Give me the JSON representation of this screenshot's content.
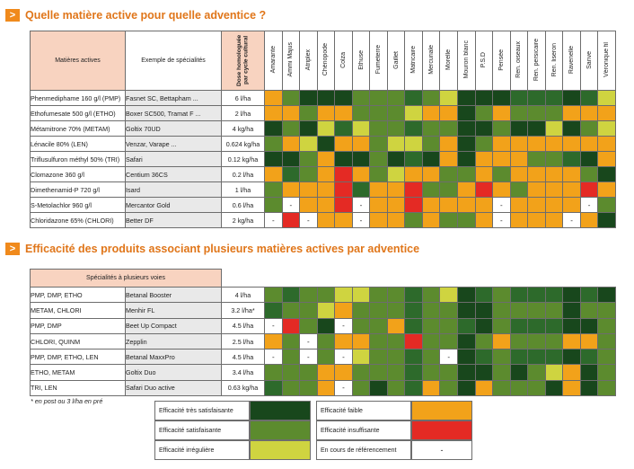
{
  "section1": {
    "marker": ">",
    "title": "Quelle matière active pour quelle adventice ?"
  },
  "section2": {
    "marker": ">",
    "title": "Efficacité des produits associant plusieurs matières actives par adventice"
  },
  "table1": {
    "head_actives": "Matières actives",
    "head_spec": "Exemple de spécialités",
    "head_dose": "Dose homologuée par cycle cultural",
    "weeds": [
      "Amarante",
      "Ammi Majus",
      "Atriplex",
      "Chénopode",
      "Colza",
      "Ethuse",
      "Fumeterre",
      "Gaillet",
      "Matricaire",
      "Mercuriale",
      "Morelle",
      "Mouron blanc",
      "P.S.D",
      "Pensée",
      "Ren. oiseaux",
      "Ren. persicaire",
      "Ren. liseron",
      "Ravenelle",
      "Sanve",
      "Véronique fil"
    ],
    "rows": [
      {
        "active": "Phenmediphame 160 g/l (PMP)",
        "spec": "Fasnet SC, Bettapham ...",
        "dose": "6 l/ha",
        "cells": [
          "O",
          "L",
          "D",
          "D",
          "D",
          "L",
          "L",
          "L",
          "M",
          "L",
          "Y",
          "D",
          "D",
          "D",
          "M",
          "M",
          "M",
          "D",
          "M",
          "Y"
        ]
      },
      {
        "active": "Ethofumesate 500 g/l (ETHO)",
        "spec": "Boxer SC500, Tramat F ...",
        "dose": "2 l/ha",
        "cells": [
          "O",
          "O",
          "L",
          "O",
          "O",
          "L",
          "L",
          "L",
          "Y",
          "O",
          "O",
          "D",
          "L",
          "O",
          "L",
          "L",
          "L",
          "O",
          "O",
          "O"
        ]
      },
      {
        "active": "Métamitrone 70% (METAM)",
        "spec": "Goltix 70UD",
        "dose": "4 kg/ha",
        "cells": [
          "D",
          "L",
          "D",
          "Y",
          "M",
          "Y",
          "L",
          "L",
          "M",
          "L",
          "L",
          "D",
          "D",
          "L",
          "D",
          "D",
          "Y",
          "D",
          "L",
          "Y"
        ]
      },
      {
        "active": "Lénacile 80% (LEN)",
        "spec": "Venzar, Varape ...",
        "dose": "0.624 kg/ha",
        "cells": [
          "L",
          "O",
          "Y",
          "D",
          "O",
          "O",
          "L",
          "Y",
          "Y",
          "L",
          "O",
          "D",
          "L",
          "O",
          "O",
          "O",
          "O",
          "O",
          "O",
          "O"
        ]
      },
      {
        "active": "Triflusulfuron méthyl 50% (TRI)",
        "spec": "Safari",
        "dose": "0.12 kg/ha",
        "cells": [
          "D",
          "D",
          "L",
          "O",
          "D",
          "D",
          "L",
          "D",
          "M",
          "D",
          "O",
          "D",
          "O",
          "O",
          "O",
          "L",
          "L",
          "M",
          "D",
          "O"
        ]
      },
      {
        "active": "Clomazone 360 g/l",
        "spec": "Centium 36CS",
        "dose": "0.2 l/ha",
        "cells": [
          "O",
          "M",
          "L",
          "O",
          "R",
          "O",
          "L",
          "Y",
          "O",
          "O",
          "L",
          "L",
          "O",
          "L",
          "O",
          "O",
          "O",
          "O",
          "L",
          "D"
        ]
      },
      {
        "active": "Dimethenamid-P 720 g/l",
        "spec": "Isard",
        "dose": "1 l/ha",
        "cells": [
          "L",
          "O",
          "O",
          "O",
          "R",
          "M",
          "O",
          "O",
          "R",
          "L",
          "L",
          "O",
          "R",
          "O",
          "L",
          "O",
          "O",
          "O",
          "R",
          "O"
        ]
      },
      {
        "active": "S-Metolachlor 960 g/l",
        "spec": "Mercantor Gold",
        "dose": "0.6 l/ha",
        "cells": [
          "L",
          "-",
          "O",
          "O",
          "R",
          "-",
          "O",
          "O",
          "R",
          "O",
          "O",
          "O",
          "O",
          "-",
          "O",
          "O",
          "O",
          "O",
          "-",
          "L"
        ]
      },
      {
        "active": "Chloridazone 65% (CHLORI)",
        "spec": "Better DF",
        "dose": "2 kg/ha",
        "cells": [
          "-",
          "R",
          "-",
          "O",
          "O",
          "-",
          "O",
          "O",
          "L",
          "O",
          "L",
          "L",
          "O",
          "-",
          "O",
          "O",
          "O",
          "-",
          "O",
          "D"
        ]
      }
    ]
  },
  "table2": {
    "head_spec": "Spécialités à plusieurs voies",
    "rows": [
      {
        "active": "PMP, DMP, ETHO",
        "spec": "Betanal Booster",
        "dose": "4 l/ha",
        "cells": [
          "L",
          "M",
          "L",
          "L",
          "Y",
          "Y",
          "L",
          "L",
          "M",
          "L",
          "Y",
          "D",
          "M",
          "L",
          "M",
          "M",
          "M",
          "D",
          "M",
          "D"
        ]
      },
      {
        "active": "METAM, CHLORI",
        "spec": "Menhir FL",
        "dose": "3.2 l/ha*",
        "cells": [
          "M",
          "L",
          "L",
          "Y",
          "O",
          "L",
          "L",
          "L",
          "M",
          "L",
          "L",
          "D",
          "D",
          "L",
          "L",
          "L",
          "L",
          "D",
          "L",
          "L"
        ]
      },
      {
        "active": "PMP, DMP",
        "spec": "Beet Up Compact",
        "dose": "4.5 l/ha",
        "cells": [
          "-",
          "R",
          "L",
          "D",
          "-",
          "L",
          "L",
          "O",
          "M",
          "L",
          "L",
          "M",
          "D",
          "L",
          "M",
          "M",
          "M",
          "D",
          "D",
          "L"
        ]
      },
      {
        "active": "CHLORI, QUINM",
        "spec": "Zepplin",
        "dose": "2.5 l/ha",
        "cells": [
          "O",
          "L",
          "-",
          "L",
          "O",
          "O",
          "L",
          "L",
          "R",
          "L",
          "L",
          "D",
          "L",
          "O",
          "L",
          "L",
          "L",
          "O",
          "O",
          "L"
        ]
      },
      {
        "active": "PMP, DMP, ETHO, LEN",
        "spec": "Betanal MaxxPro",
        "dose": "4.5 l/ha",
        "cells": [
          "-",
          "L",
          "-",
          "L",
          "-",
          "Y",
          "L",
          "L",
          "M",
          "L",
          "-",
          "D",
          "M",
          "L",
          "M",
          "M",
          "M",
          "D",
          "M",
          "L"
        ]
      },
      {
        "active": "ETHO, METAM",
        "spec": "Goltix Duo",
        "dose": "3.4 l/ha",
        "cells": [
          "L",
          "L",
          "L",
          "O",
          "O",
          "L",
          "L",
          "L",
          "M",
          "L",
          "L",
          "D",
          "D",
          "L",
          "D",
          "L",
          "Y",
          "O",
          "D",
          "L"
        ]
      },
      {
        "active": "TRI, LEN",
        "spec": "Safari Duo active",
        "dose": "0.63 kg/ha",
        "cells": [
          "M",
          "L",
          "L",
          "O",
          "-",
          "L",
          "D",
          "L",
          "M",
          "O",
          "L",
          "D",
          "O",
          "L",
          "L",
          "L",
          "D",
          "O",
          "D",
          "L"
        ]
      }
    ]
  },
  "footnote": "* en post ou 3 l/ha en pré",
  "legend": {
    "tres": "Efficacité très satisfaisante",
    "satis": "Efficacité satisfaisante",
    "irreg": "Efficacité  irrégulière",
    "faible": "Efficacité faible",
    "insuff": "Efficacité insuffisante",
    "cours": "En cours de référencement",
    "dash": "-"
  },
  "colors": {
    "D": "#18471c",
    "M": "#2d6a2b",
    "L": "#5c8b2e",
    "Y": "#cfd440",
    "O": "#f2a21a",
    "R": "#e42a24",
    "-": "#ffffff",
    "accent": "#e0761a"
  }
}
